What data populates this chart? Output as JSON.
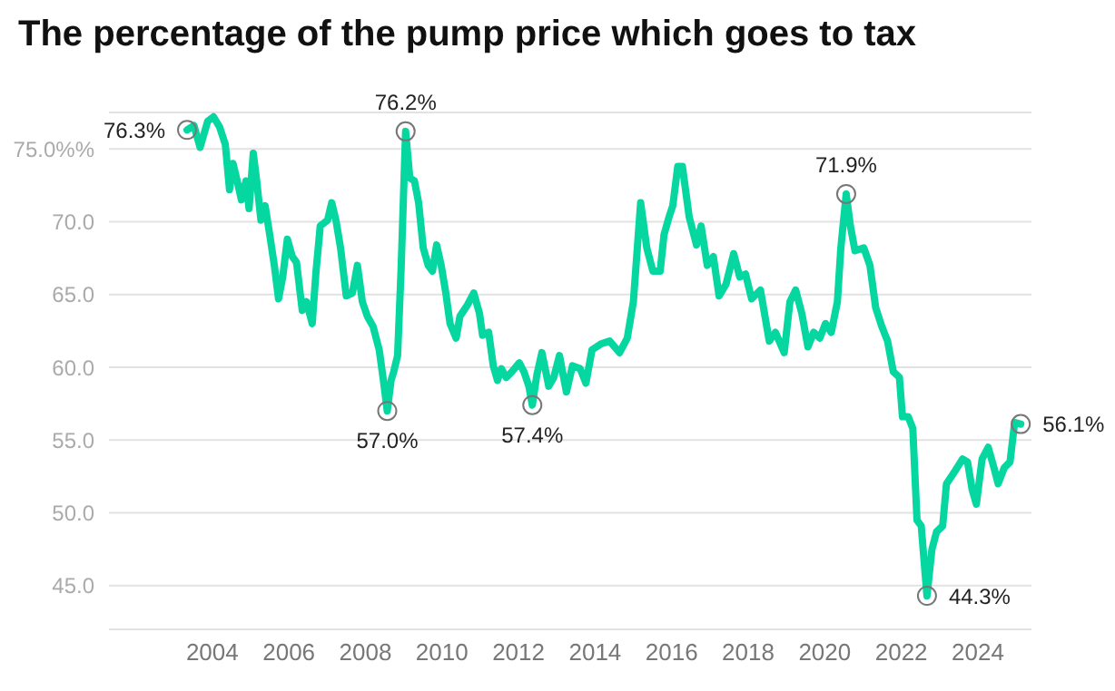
{
  "chart_data": {
    "type": "line",
    "title": "The percentage of the pump price which goes to tax",
    "x": [
      2003.34,
      2003.52,
      2003.68,
      2003.88,
      2004.03,
      2004.19,
      2004.34,
      2004.45,
      2004.54,
      2004.65,
      2004.76,
      2004.88,
      2004.96,
      2005.07,
      2005.16,
      2005.27,
      2005.38,
      2005.5,
      2005.62,
      2005.73,
      2005.84,
      2005.96,
      2006.09,
      2006.2,
      2006.35,
      2006.46,
      2006.61,
      2006.71,
      2006.82,
      2007.01,
      2007.12,
      2007.23,
      2007.35,
      2007.5,
      2007.66,
      2007.79,
      2007.92,
      2008.05,
      2008.2,
      2008.36,
      2008.47,
      2008.57,
      2008.67,
      2008.74,
      2008.84,
      2008.93,
      2009.05,
      2009.16,
      2009.28,
      2009.39,
      2009.51,
      2009.64,
      2009.75,
      2009.86,
      2009.98,
      2010.1,
      2010.21,
      2010.37,
      2010.47,
      2010.67,
      2010.83,
      2010.98,
      2011.06,
      2011.22,
      2011.34,
      2011.45,
      2011.55,
      2011.68,
      2011.83,
      2012.02,
      2012.14,
      2012.27,
      2012.36,
      2012.48,
      2012.61,
      2012.79,
      2012.92,
      2013.07,
      2013.25,
      2013.41,
      2013.61,
      2013.76,
      2013.92,
      2014.15,
      2014.38,
      2014.64,
      2014.84,
      2015.0,
      2015.19,
      2015.35,
      2015.51,
      2015.7,
      2015.8,
      2015.93,
      2016.03,
      2016.16,
      2016.28,
      2016.46,
      2016.65,
      2016.77,
      2016.93,
      2017.09,
      2017.24,
      2017.42,
      2017.62,
      2017.78,
      2017.93,
      2018.09,
      2018.32,
      2018.55,
      2018.71,
      2018.94,
      2019.09,
      2019.24,
      2019.4,
      2019.56,
      2019.71,
      2019.87,
      2020.02,
      2020.17,
      2020.33,
      2020.42,
      2020.56,
      2020.67,
      2020.79,
      2021.02,
      2021.18,
      2021.33,
      2021.49,
      2021.64,
      2021.79,
      2021.95,
      2022.03,
      2022.18,
      2022.3,
      2022.41,
      2022.52,
      2022.67,
      2022.8,
      2022.92,
      2023.08,
      2023.18,
      2023.41,
      2023.6,
      2023.73,
      2023.85,
      2023.96,
      2024.11,
      2024.27,
      2024.42,
      2024.53,
      2024.69,
      2024.84,
      2024.96,
      2025.12
    ],
    "series": [
      {
        "color": "#06d6a0",
        "values": [
          76.3,
          76.6,
          75.1,
          76.9,
          77.2,
          76.5,
          75.3,
          72.2,
          74.0,
          72.8,
          71.5,
          72.8,
          70.9,
          74.7,
          72.8,
          70.1,
          71.1,
          69.1,
          67.0,
          64.7,
          66.2,
          68.8,
          67.6,
          67.2,
          63.9,
          64.5,
          63.0,
          66.6,
          69.7,
          70.1,
          71.3,
          70.1,
          68.2,
          64.9,
          65.1,
          67.0,
          64.5,
          63.5,
          62.8,
          61.2,
          59.1,
          57.0,
          59.1,
          59.7,
          60.8,
          66.6,
          76.2,
          73.0,
          72.8,
          71.3,
          68.2,
          67.0,
          66.6,
          68.4,
          67.0,
          65.1,
          63.0,
          62.0,
          63.5,
          64.3,
          65.1,
          63.7,
          62.2,
          62.4,
          60.1,
          59.1,
          59.9,
          59.3,
          59.7,
          60.3,
          59.7,
          58.7,
          57.4,
          59.5,
          61.0,
          58.7,
          59.3,
          60.8,
          58.3,
          60.1,
          59.9,
          58.9,
          61.2,
          61.6,
          61.8,
          61.0,
          62.0,
          64.5,
          71.3,
          68.2,
          66.6,
          66.6,
          69.1,
          70.3,
          71.1,
          73.8,
          73.8,
          70.3,
          68.4,
          69.7,
          67.0,
          67.6,
          64.9,
          65.7,
          67.8,
          66.2,
          66.4,
          64.7,
          65.3,
          61.8,
          62.4,
          61.0,
          64.5,
          65.3,
          63.7,
          61.4,
          62.4,
          62.0,
          63.0,
          62.4,
          64.5,
          68.2,
          71.9,
          69.7,
          68.0,
          68.2,
          67.0,
          64.1,
          62.8,
          61.8,
          59.7,
          59.3,
          56.6,
          56.6,
          55.8,
          49.5,
          49.1,
          44.3,
          47.5,
          48.7,
          49.1,
          52.0,
          52.9,
          53.7,
          53.5,
          51.6,
          50.6,
          53.7,
          54.5,
          53.1,
          52.0,
          53.1,
          53.5,
          56.2,
          56.1
        ]
      }
    ],
    "xlim": [
      2001.3,
      2025.4
    ],
    "xticks": [
      2004,
      2006,
      2008,
      2010,
      2012,
      2014,
      2016,
      2018,
      2020,
      2022,
      2024
    ],
    "ylim": [
      42,
      77.5
    ],
    "yticks": [
      {
        "value": 45,
        "label": "45.0"
      },
      {
        "value": 50,
        "label": "50.0"
      },
      {
        "value": 55,
        "label": "55.0"
      },
      {
        "value": 60,
        "label": "60.0"
      },
      {
        "value": 65,
        "label": "65.0"
      },
      {
        "value": 70,
        "label": "70.0"
      },
      {
        "value": 75,
        "label": "75.0%%"
      }
    ],
    "grid": "y",
    "marker": "none",
    "line_style": "solid",
    "annotations": [
      {
        "text": "76.3%",
        "x": 2003.34,
        "y": 76.3
      },
      {
        "text": "57.0%",
        "x": 2008.57,
        "y": 57.0
      },
      {
        "text": "76.2%",
        "x": 2009.05,
        "y": 76.2
      },
      {
        "text": "57.4%",
        "x": 2012.36,
        "y": 57.4
      },
      {
        "text": "71.9%",
        "x": 2020.56,
        "y": 71.9
      },
      {
        "text": "44.3%",
        "x": 2022.67,
        "y": 44.3
      },
      {
        "text": "56.1%",
        "x": 2025.12,
        "y": 56.1
      }
    ]
  }
}
